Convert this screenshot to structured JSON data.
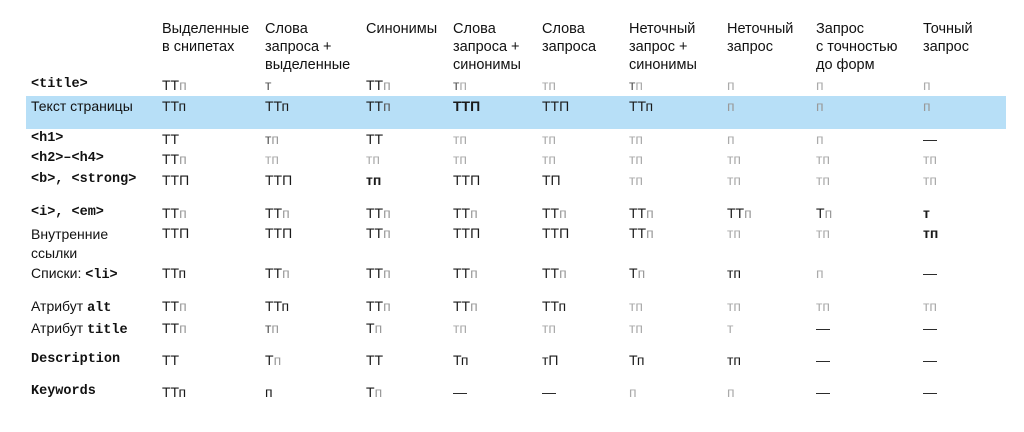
{
  "headers": [
    "Выделенные\nв снипетах",
    "Слова\nзапроса +\nвыделенные",
    "Синонимы",
    "Слова\nзапроса +\nсинонимы",
    "Слова\nзапроса",
    "Неточный\nзапрос +\nсинонимы",
    "Неточный\nзапрос",
    "Запрос\nс точностью\nдо форм",
    "Точный\nзапрос"
  ],
  "rows": [
    {
      "label": "<title>",
      "label_mono": true,
      "cells": [
        [
          [
            "ТТ",
            "c0"
          ],
          [
            "п",
            "c2"
          ]
        ],
        [
          [
            "т",
            "c1"
          ]
        ],
        [
          [
            "ТТ",
            "c0"
          ],
          [
            "п",
            "c2"
          ]
        ],
        [
          [
            "т",
            "c1"
          ],
          [
            "п",
            "c3"
          ]
        ],
        [
          [
            "тп",
            "c3"
          ]
        ],
        [
          [
            "т",
            "c1"
          ],
          [
            "п",
            "c3"
          ]
        ],
        [
          [
            "п",
            "c3"
          ]
        ],
        [
          [
            "п",
            "c3"
          ]
        ],
        [
          [
            "п",
            "c3"
          ]
        ]
      ]
    },
    {
      "label": "Текст страницы",
      "label_mono": false,
      "highlight": true,
      "cells": [
        [
          [
            "ТТп",
            "c0"
          ]
        ],
        [
          [
            "ТТп",
            "c0"
          ]
        ],
        [
          [
            "ТТ",
            "c0"
          ],
          [
            "п",
            "c1"
          ]
        ],
        [
          [
            "ТТП",
            "c0 b"
          ]
        ],
        [
          [
            "ТТП",
            "c0"
          ]
        ],
        [
          [
            "ТТп",
            "c0"
          ]
        ],
        [
          [
            "п",
            "c2"
          ]
        ],
        [
          [
            "п",
            "c2"
          ]
        ],
        [
          [
            "п",
            "c2"
          ]
        ]
      ]
    },
    {
      "label": "<h1>",
      "label_mono": true,
      "cells": [
        [
          [
            "ТТ",
            "c0"
          ]
        ],
        [
          [
            "т",
            "c1"
          ],
          [
            "п",
            "c2"
          ]
        ],
        [
          [
            "ТТ",
            "c0"
          ]
        ],
        [
          [
            "тп",
            "c3"
          ]
        ],
        [
          [
            "тп",
            "c3"
          ]
        ],
        [
          [
            "тп",
            "c3"
          ]
        ],
        [
          [
            "п",
            "c3"
          ]
        ],
        [
          [
            "п",
            "c3"
          ]
        ],
        [
          [
            "—",
            "c0"
          ]
        ]
      ]
    },
    {
      "label": "<h2>–<h4>",
      "label_mono": true,
      "cells": [
        [
          [
            "ТТ",
            "c0"
          ],
          [
            "п",
            "c2"
          ]
        ],
        [
          [
            "тп",
            "c3"
          ]
        ],
        [
          [
            "тп",
            "c3"
          ]
        ],
        [
          [
            "тп",
            "c3"
          ]
        ],
        [
          [
            "тп",
            "c3"
          ]
        ],
        [
          [
            "тп",
            "c3"
          ]
        ],
        [
          [
            "тп",
            "c3"
          ]
        ],
        [
          [
            "тп",
            "c3"
          ]
        ],
        [
          [
            "тп",
            "c3"
          ]
        ]
      ]
    },
    {
      "label": "<b>, <strong>",
      "label_mono": true,
      "cells": [
        [
          [
            "ТТП",
            "c0"
          ]
        ],
        [
          [
            "ТТП",
            "c0"
          ]
        ],
        [
          [
            "тп",
            "c0 b"
          ]
        ],
        [
          [
            "ТТП",
            "c0"
          ]
        ],
        [
          [
            "ТП",
            "c0"
          ]
        ],
        [
          [
            "тп",
            "c3"
          ]
        ],
        [
          [
            "тп",
            "c3"
          ]
        ],
        [
          [
            "тп",
            "c3"
          ]
        ],
        [
          [
            "тп",
            "c3"
          ]
        ]
      ]
    },
    {
      "label": "<i>, <em>",
      "label_mono": true,
      "cells": [
        [
          [
            "ТТ",
            "c0"
          ],
          [
            "п",
            "c2"
          ]
        ],
        [
          [
            "ТТ",
            "c0"
          ],
          [
            "п",
            "c2"
          ]
        ],
        [
          [
            "ТТ",
            "c0"
          ],
          [
            "п",
            "c2"
          ]
        ],
        [
          [
            "ТТ",
            "c0"
          ],
          [
            "п",
            "c2"
          ]
        ],
        [
          [
            "ТТ",
            "c0"
          ],
          [
            "п",
            "c2"
          ]
        ],
        [
          [
            "ТТ",
            "c0"
          ],
          [
            "п",
            "c2"
          ]
        ],
        [
          [
            "ТТ",
            "c0"
          ],
          [
            "п",
            "c2"
          ]
        ],
        [
          [
            "Т",
            "c0"
          ],
          [
            "п",
            "c2"
          ]
        ],
        [
          [
            "т",
            "c0 b"
          ]
        ]
      ]
    },
    {
      "label": "Внутренние\nссылки",
      "label_mono": false,
      "cells": [
        [
          [
            "ТТП",
            "c0"
          ]
        ],
        [
          [
            "ТТП",
            "c0"
          ]
        ],
        [
          [
            "ТТ",
            "c0"
          ],
          [
            "п",
            "c2"
          ]
        ],
        [
          [
            "ТТП",
            "c0"
          ]
        ],
        [
          [
            "ТТП",
            "c0"
          ]
        ],
        [
          [
            "ТТ",
            "c0"
          ],
          [
            "п",
            "c2"
          ]
        ],
        [
          [
            "тп",
            "c3"
          ]
        ],
        [
          [
            "тп",
            "c3"
          ]
        ],
        [
          [
            "тп",
            "c0 b"
          ]
        ]
      ]
    },
    {
      "label": "Списки: <li>",
      "label_mono": false,
      "label_code": "<li>",
      "label_prefix": "Списки: ",
      "cells": [
        [
          [
            "ТТп",
            "c0"
          ]
        ],
        [
          [
            "ТТ",
            "c0"
          ],
          [
            "п",
            "c2"
          ]
        ],
        [
          [
            "ТТ",
            "c0"
          ],
          [
            "п",
            "c2"
          ]
        ],
        [
          [
            "ТТ",
            "c0"
          ],
          [
            "п",
            "c2"
          ]
        ],
        [
          [
            "ТТ",
            "c0"
          ],
          [
            "п",
            "c2"
          ]
        ],
        [
          [
            "Т",
            "c0"
          ],
          [
            "п",
            "c2"
          ]
        ],
        [
          [
            "тп",
            "c0"
          ]
        ],
        [
          [
            "п",
            "c3"
          ]
        ],
        [
          [
            "—",
            "c0"
          ]
        ]
      ]
    },
    {
      "label": "Атрибут alt",
      "label_mono": false,
      "label_code": "alt",
      "label_prefix": "Атрибут ",
      "cells": [
        [
          [
            "ТТ",
            "c0"
          ],
          [
            "п",
            "c2"
          ]
        ],
        [
          [
            "ТТп",
            "c0"
          ]
        ],
        [
          [
            "ТТ",
            "c0"
          ],
          [
            "п",
            "c2"
          ]
        ],
        [
          [
            "ТТ",
            "c0"
          ],
          [
            "п",
            "c2"
          ]
        ],
        [
          [
            "ТТп",
            "c0"
          ]
        ],
        [
          [
            "тп",
            "c3"
          ]
        ],
        [
          [
            "тп",
            "c3"
          ]
        ],
        [
          [
            "тп",
            "c3"
          ]
        ],
        [
          [
            "тп",
            "c3"
          ]
        ]
      ]
    },
    {
      "label": "Атрибут title",
      "label_mono": false,
      "label_code": "title",
      "label_prefix": "Атрибут ",
      "cells": [
        [
          [
            "ТТ",
            "c0"
          ],
          [
            "п",
            "c2"
          ]
        ],
        [
          [
            "т",
            "c1"
          ],
          [
            "п",
            "c2"
          ]
        ],
        [
          [
            "Т",
            "c0"
          ],
          [
            "п",
            "c2"
          ]
        ],
        [
          [
            "тп",
            "c3"
          ]
        ],
        [
          [
            "тп",
            "c3"
          ]
        ],
        [
          [
            "тп",
            "c3"
          ]
        ],
        [
          [
            "т",
            "c3"
          ]
        ],
        [
          [
            "—",
            "c0"
          ]
        ],
        [
          [
            "—",
            "c0"
          ]
        ]
      ]
    },
    {
      "label": "Description",
      "label_mono": true,
      "cells": [
        [
          [
            "ТТ",
            "c0"
          ]
        ],
        [
          [
            "Т",
            "c0"
          ],
          [
            "п",
            "c2"
          ]
        ],
        [
          [
            "ТТ",
            "c0"
          ]
        ],
        [
          [
            "Тп",
            "c0"
          ]
        ],
        [
          [
            "тП",
            "c0"
          ]
        ],
        [
          [
            "Тп",
            "c0"
          ]
        ],
        [
          [
            "тп",
            "c0"
          ]
        ],
        [
          [
            "—",
            "c0"
          ]
        ],
        [
          [
            "—",
            "c0"
          ]
        ]
      ]
    },
    {
      "label": "Keywords",
      "label_mono": true,
      "cells": [
        [
          [
            "ТТп",
            "c0"
          ]
        ],
        [
          [
            "п",
            "c0"
          ]
        ],
        [
          [
            "Т",
            "c0"
          ],
          [
            "п",
            "c2"
          ]
        ],
        [
          [
            "—",
            "c0"
          ]
        ],
        [
          [
            "—",
            "c0"
          ]
        ],
        [
          [
            "п",
            "c3"
          ]
        ],
        [
          [
            "п",
            "c3"
          ]
        ],
        [
          [
            "—",
            "c0"
          ]
        ],
        [
          [
            "—",
            "c0"
          ]
        ]
      ]
    }
  ]
}
